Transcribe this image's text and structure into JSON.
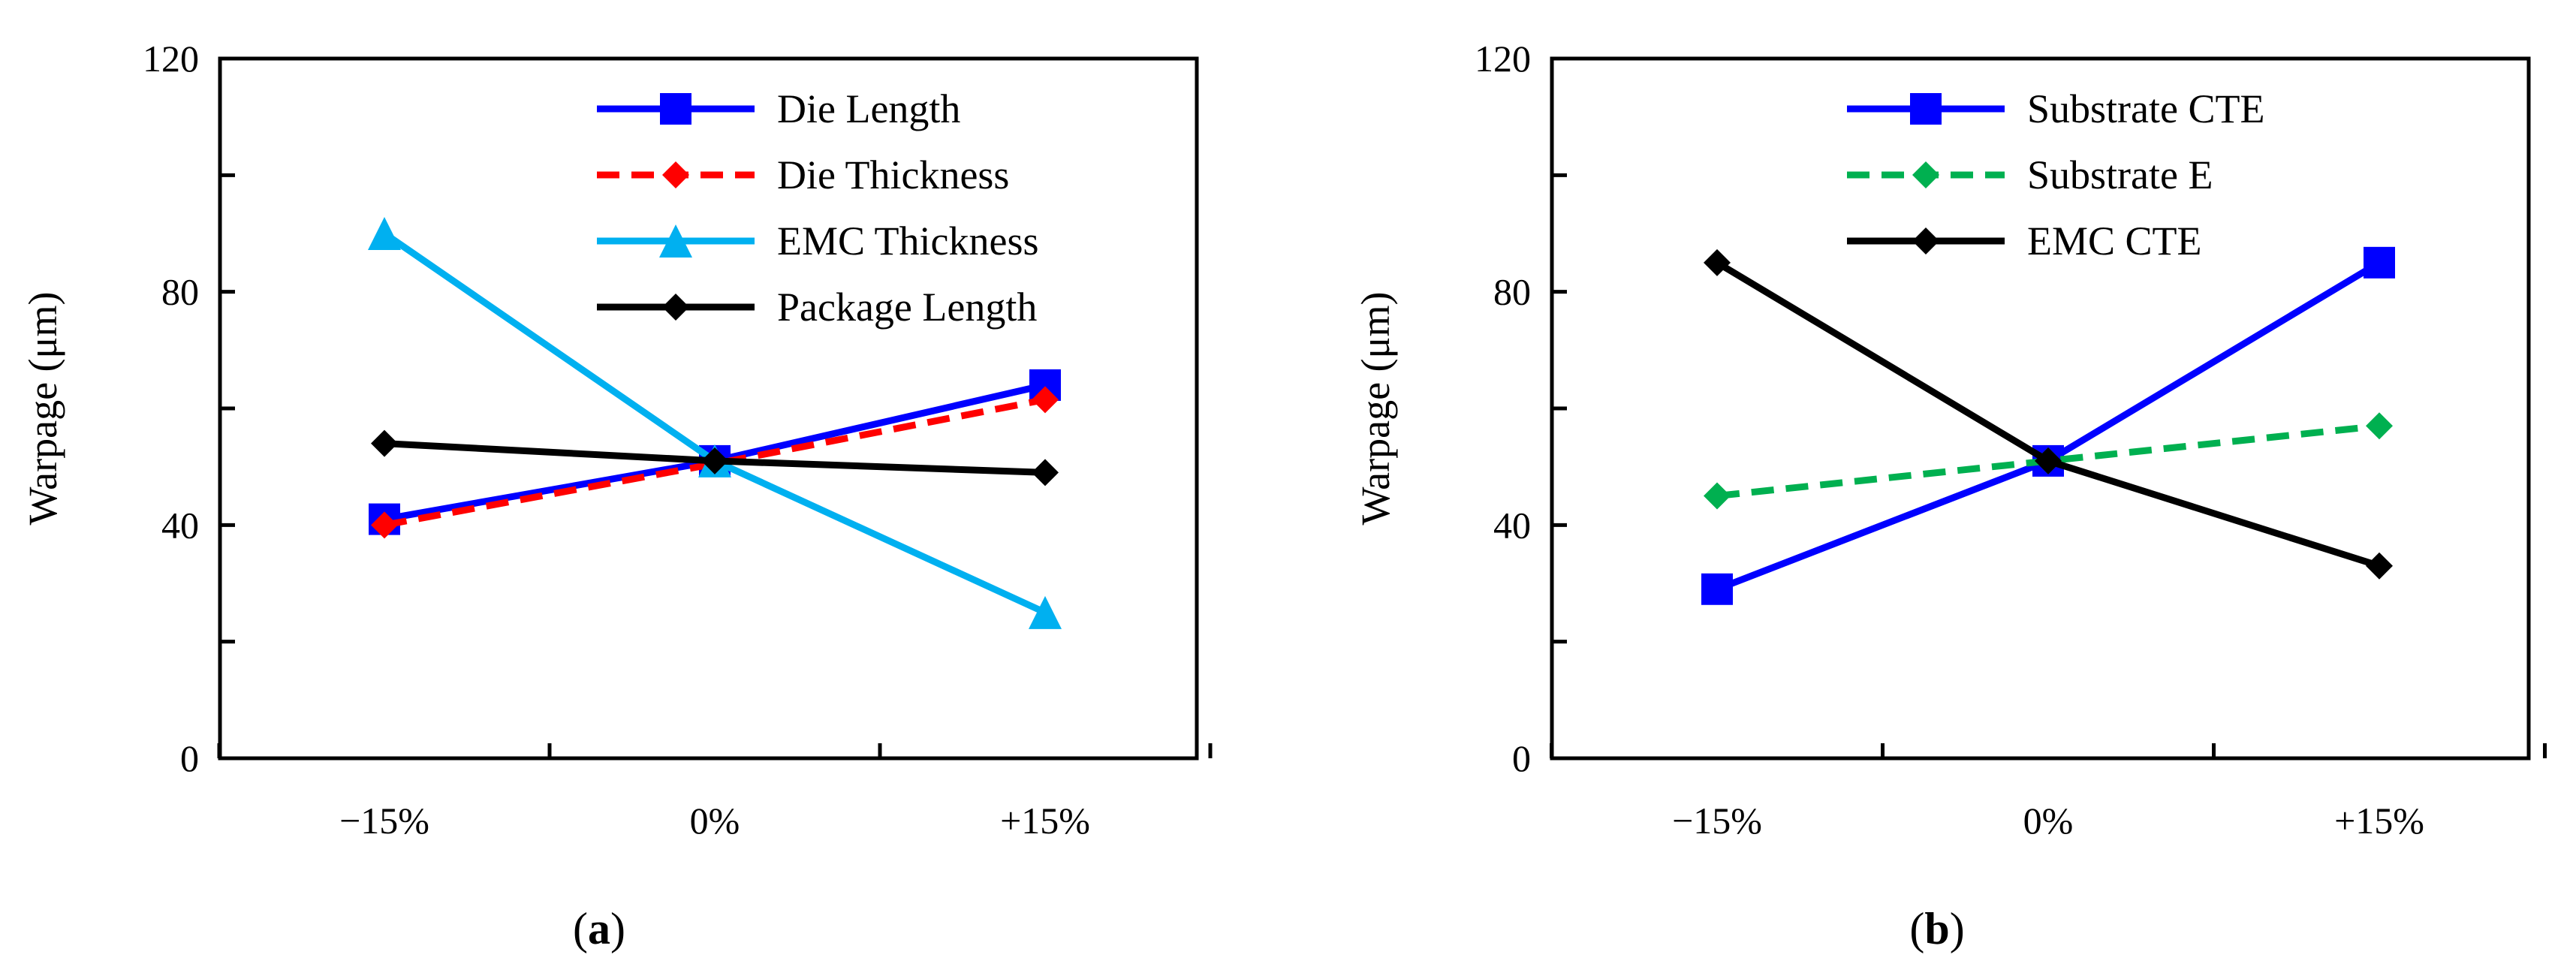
{
  "chart_data": [
    {
      "type": "line",
      "panel_label": "(a)",
      "panel_letter": "a",
      "ylabel": "Warpage  (μm)",
      "xlabel": "",
      "ylim": [
        0,
        120
      ],
      "yticks": [
        0,
        40,
        80,
        120
      ],
      "categories": [
        "−15%",
        "0%",
        "+15%"
      ],
      "grid": false,
      "legend_position": "top-right",
      "series": [
        {
          "name": "Die Length",
          "values": [
            41,
            51,
            64
          ],
          "color": "#0000ff",
          "marker": "square",
          "dash": "solid"
        },
        {
          "name": "Die Thickness",
          "values": [
            40,
            50.5,
            61.5
          ],
          "color": "#ff0000",
          "marker": "diamond",
          "dash": "dashed"
        },
        {
          "name": "EMC Thickness",
          "values": [
            90,
            51,
            25
          ],
          "color": "#00b0f0",
          "marker": "triangle",
          "dash": "solid"
        },
        {
          "name": "Package Length",
          "values": [
            54,
            51,
            49
          ],
          "color": "#000000",
          "marker": "diamond",
          "dash": "solid"
        }
      ]
    },
    {
      "type": "line",
      "panel_label": "(b)",
      "panel_letter": "b",
      "ylabel": "Warpage  (μm)",
      "xlabel": "",
      "ylim": [
        0,
        120
      ],
      "yticks": [
        0,
        40,
        80,
        120
      ],
      "categories": [
        "−15%",
        "0%",
        "+15%"
      ],
      "grid": false,
      "legend_position": "top-right",
      "series": [
        {
          "name": "Substrate CTE",
          "values": [
            29,
            51,
            85
          ],
          "color": "#0000ff",
          "marker": "square",
          "dash": "solid"
        },
        {
          "name": "Substrate E",
          "values": [
            45,
            51,
            57
          ],
          "color": "#00b050",
          "marker": "diamond",
          "dash": "dashed"
        },
        {
          "name": "EMC CTE",
          "values": [
            85,
            51,
            33
          ],
          "color": "#000000",
          "marker": "diamond",
          "dash": "solid"
        }
      ]
    }
  ]
}
